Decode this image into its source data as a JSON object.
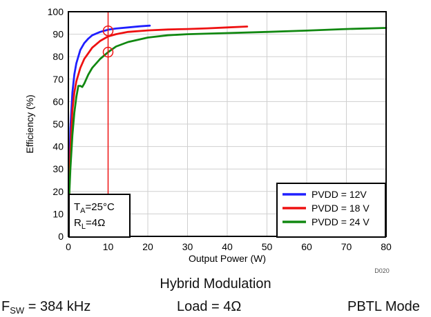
{
  "chart_data": {
    "type": "line",
    "title": "",
    "xlabel": "Output Power (W)",
    "ylabel": "Efficiency (%)",
    "xlim": [
      0,
      80
    ],
    "ylim": [
      0,
      100
    ],
    "xticks": [
      "0",
      "10",
      "20",
      "30",
      "40",
      "50",
      "60",
      "70",
      "80"
    ],
    "yticks": [
      "0",
      "10",
      "20",
      "30",
      "40",
      "50",
      "60",
      "70",
      "80",
      "90",
      "100"
    ],
    "grid": true,
    "legend_position": "bottom-right",
    "figure_id": "D020",
    "conditions": {
      "ta_prefix": "T",
      "ta_sub": "A",
      "ta_value": "=25°C",
      "rl_prefix": "R",
      "rl_sub": "L",
      "rl_value": "=4Ω"
    },
    "series": [
      {
        "name": "PVDD = 12V",
        "color": "#1f1fff",
        "x": [
          0.2,
          0.5,
          1,
          1.5,
          2,
          3,
          4,
          5,
          6,
          8,
          10,
          12,
          15,
          18,
          20.5
        ],
        "y": [
          25,
          48,
          64,
          72,
          77,
          83,
          86,
          88,
          89.5,
          91,
          92,
          92.5,
          93,
          93.5,
          93.8
        ]
      },
      {
        "name": "PVDD = 18 V",
        "color": "#ee1111",
        "x": [
          0.2,
          0.5,
          1,
          1.5,
          2,
          3,
          4,
          5,
          6,
          8,
          10,
          12,
          15,
          20,
          25,
          30,
          35,
          40,
          45
        ],
        "y": [
          18,
          38,
          56,
          64,
          69,
          75,
          79,
          81.5,
          84,
          87,
          89,
          90,
          91,
          91.7,
          92.1,
          92.3,
          92.6,
          93,
          93.4
        ]
      },
      {
        "name": "PVDD = 24 V",
        "color": "#118811",
        "x": [
          0.2,
          0.5,
          1,
          1.5,
          2,
          2.5,
          3,
          3.5,
          4,
          5,
          6,
          8,
          10,
          12,
          15,
          20,
          25,
          30,
          40,
          50,
          60,
          70,
          80
        ],
        "y": [
          18,
          30,
          45,
          55,
          62,
          67,
          67,
          66.5,
          68,
          72,
          75,
          79,
          82,
          84.5,
          86.5,
          88.5,
          89.5,
          90,
          90.5,
          91,
          91.6,
          92.3,
          92.8
        ]
      }
    ],
    "annotations": {
      "vertical_line_x": 10,
      "markers": [
        {
          "x": 10,
          "y": 91.5
        },
        {
          "x": 10,
          "y": 82
        }
      ],
      "color": "#ee1111"
    }
  },
  "captions": {
    "modulation": "Hybrid Modulation",
    "fsw_prefix": "F",
    "fsw_sub": "SW",
    "fsw_value": " = 384 kHz",
    "load": "Load = 4Ω",
    "mode": "PBTL Mode"
  }
}
